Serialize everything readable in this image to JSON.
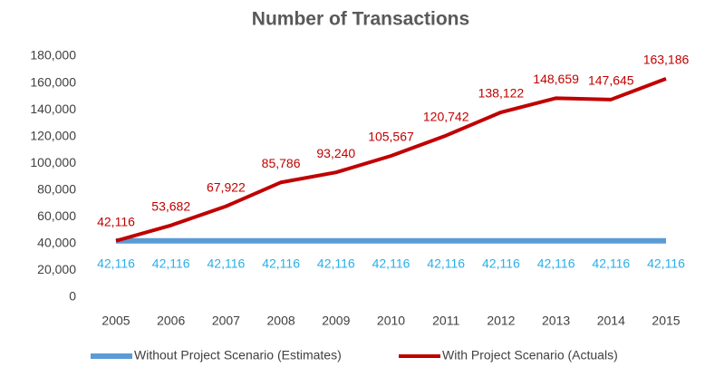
{
  "chart_data": {
    "type": "line",
    "title": "Number of Transactions",
    "categories": [
      "2005",
      "2006",
      "2007",
      "2008",
      "2009",
      "2010",
      "2011",
      "2012",
      "2013",
      "2014",
      "2015"
    ],
    "series": [
      {
        "name": "Without Project Scenario (Estimates)",
        "color": "#5b9bd5",
        "label_color": "#29aee6",
        "label_position": "below",
        "values": [
          42116,
          42116,
          42116,
          42116,
          42116,
          42116,
          42116,
          42116,
          42116,
          42116,
          42116
        ],
        "value_labels": [
          "42,116",
          "42,116",
          "42,116",
          "42,116",
          "42,116",
          "42,116",
          "42,116",
          "42,116",
          "42,116",
          "42,116",
          "42,116"
        ]
      },
      {
        "name": "With Project Scenario (Actuals)",
        "color": "#c00000",
        "label_color": "#c00000",
        "label_position": "above",
        "values": [
          42116,
          53682,
          67922,
          85786,
          93240,
          105567,
          120742,
          138122,
          148659,
          147645,
          163186
        ],
        "value_labels": [
          "42,116",
          "53,682",
          "67,922",
          "85,786",
          "93,240",
          "105,567",
          "120,742",
          "138,122",
          "148,659",
          "147,645",
          "163,186"
        ]
      }
    ],
    "ylim": [
      0,
      180000
    ],
    "yticks": [
      0,
      {
        "value": 20000,
        "label": "20,000"
      },
      {
        "value": 40000,
        "label": "40,000"
      },
      {
        "value": 60000,
        "label": "60,000"
      },
      {
        "value": 80000,
        "label": "80,000"
      },
      {
        "value": 100000,
        "label": "100,000"
      },
      {
        "value": 120000,
        "label": "120,000"
      },
      {
        "value": 140000,
        "label": "140,000"
      },
      {
        "value": 160000,
        "label": "160,000"
      },
      {
        "value": 180000,
        "label": "180,000"
      }
    ],
    "grid": false,
    "legend": "bottom"
  }
}
